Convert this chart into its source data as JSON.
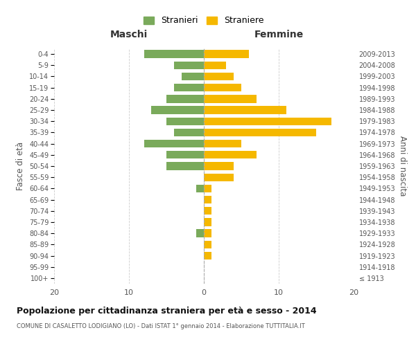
{
  "age_groups": [
    "100+",
    "95-99",
    "90-94",
    "85-89",
    "80-84",
    "75-79",
    "70-74",
    "65-69",
    "60-64",
    "55-59",
    "50-54",
    "45-49",
    "40-44",
    "35-39",
    "30-34",
    "25-29",
    "20-24",
    "15-19",
    "10-14",
    "5-9",
    "0-4"
  ],
  "birth_years": [
    "≤ 1913",
    "1914-1918",
    "1919-1923",
    "1924-1928",
    "1929-1933",
    "1934-1938",
    "1939-1943",
    "1944-1948",
    "1949-1953",
    "1954-1958",
    "1959-1963",
    "1964-1968",
    "1969-1973",
    "1974-1978",
    "1979-1983",
    "1984-1988",
    "1989-1993",
    "1994-1998",
    "1999-2003",
    "2004-2008",
    "2009-2013"
  ],
  "males": [
    0,
    0,
    0,
    0,
    1,
    0,
    0,
    0,
    1,
    0,
    5,
    5,
    8,
    4,
    5,
    7,
    5,
    4,
    3,
    4,
    8
  ],
  "females": [
    0,
    0,
    1,
    1,
    1,
    1,
    1,
    1,
    1,
    4,
    4,
    7,
    5,
    15,
    17,
    11,
    7,
    5,
    4,
    3,
    6
  ],
  "male_color": "#7aaa5b",
  "female_color": "#f5b800",
  "background_color": "#ffffff",
  "grid_color": "#cccccc",
  "title": "Popolazione per cittadinanza straniera per età e sesso - 2014",
  "subtitle": "COMUNE DI CASALETTO LODIGIANO (LO) - Dati ISTAT 1° gennaio 2014 - Elaborazione TUTTITALIA.IT",
  "xlabel_left": "Maschi",
  "xlabel_right": "Femmine",
  "ylabel_left": "Fasce di età",
  "ylabel_right": "Anni di nascita",
  "legend_male": "Stranieri",
  "legend_female": "Straniere",
  "xlim": 20
}
